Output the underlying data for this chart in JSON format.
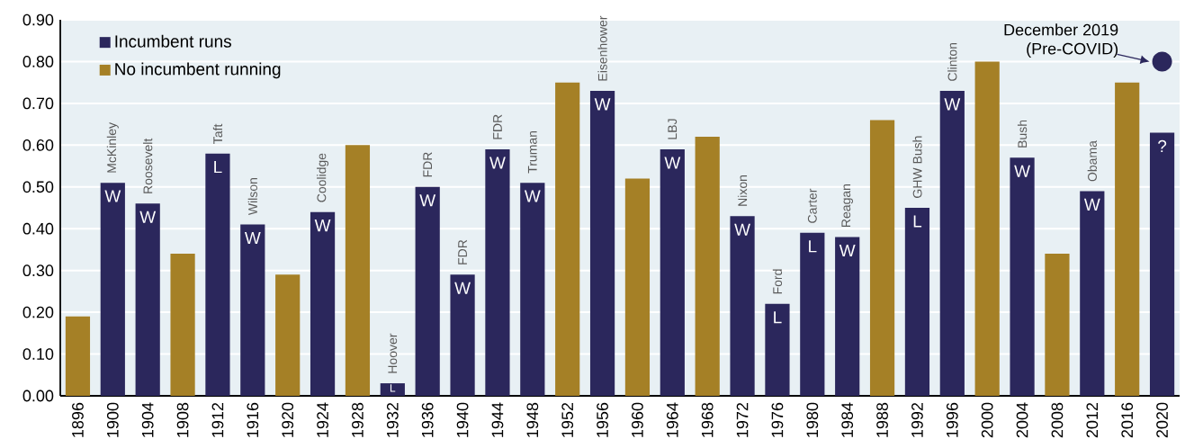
{
  "chart_data": {
    "type": "bar",
    "categories": [
      "1896",
      "1900",
      "1904",
      "1908",
      "1912",
      "1916",
      "1920",
      "1924",
      "1928",
      "1932",
      "1936",
      "1940",
      "1944",
      "1948",
      "1952",
      "1956",
      "1960",
      "1964",
      "1968",
      "1972",
      "1976",
      "1980",
      "1984",
      "1988",
      "1992",
      "1996",
      "2000",
      "2004",
      "2008",
      "2012",
      "2016",
      "2020"
    ],
    "series": [
      {
        "name": "Incumbent runs",
        "color": "#2b275c",
        "values": [
          null,
          0.51,
          0.46,
          null,
          0.58,
          0.41,
          null,
          0.44,
          null,
          0.03,
          0.5,
          0.29,
          0.59,
          0.51,
          null,
          0.73,
          null,
          0.59,
          null,
          0.43,
          0.22,
          0.39,
          0.38,
          null,
          0.45,
          0.73,
          null,
          0.57,
          null,
          0.49,
          null,
          0.63
        ],
        "value_labels": [
          null,
          "W",
          "W",
          null,
          "L",
          "W",
          null,
          "W",
          null,
          "L",
          "W",
          "W",
          "W",
          "W",
          null,
          "W",
          null,
          "W",
          null,
          "W",
          "L",
          "L",
          "W",
          null,
          "L",
          "W",
          null,
          "W",
          null,
          "W",
          null,
          "?"
        ]
      },
      {
        "name": "No incumbent running",
        "color": "#a58026",
        "values": [
          0.19,
          null,
          null,
          0.34,
          null,
          null,
          0.29,
          null,
          0.6,
          null,
          null,
          null,
          null,
          null,
          0.75,
          null,
          0.52,
          null,
          0.62,
          null,
          null,
          null,
          null,
          0.66,
          null,
          null,
          0.8,
          null,
          0.34,
          null,
          0.75,
          null
        ]
      },
      {
        "type": "scatter",
        "marker": "circle",
        "color": "#2b275c",
        "values": [
          null,
          null,
          null,
          null,
          null,
          null,
          null,
          null,
          null,
          null,
          null,
          null,
          null,
          null,
          null,
          null,
          null,
          null,
          null,
          null,
          null,
          null,
          null,
          null,
          null,
          null,
          null,
          null,
          null,
          null,
          null,
          0.8
        ]
      }
    ],
    "ylim": [
      0,
      0.9
    ],
    "yticks": [
      {
        "value": 0,
        "label": "0.00"
      },
      {
        "value": 0.1,
        "label": "0.10"
      },
      {
        "value": 0.2,
        "label": "0.20"
      },
      {
        "value": 0.3,
        "label": "0.30"
      },
      {
        "value": 0.4,
        "label": "0.40"
      },
      {
        "value": 0.5,
        "label": "0.50"
      },
      {
        "value": 0.6,
        "label": "0.60"
      },
      {
        "value": 0.7,
        "label": "0.70"
      },
      {
        "value": 0.8,
        "label": "0.80"
      },
      {
        "value": 0.9,
        "label": "0.90"
      }
    ],
    "grid": "y",
    "legend": "top left",
    "annotations": [
      {
        "text": "McKinley",
        "x": "1900",
        "y": 0.51
      },
      {
        "text": "Roosevelt",
        "x": "1904",
        "y": 0.46
      },
      {
        "text": "Taft",
        "x": "1912",
        "y": 0.58
      },
      {
        "text": "Wilson",
        "x": "1916",
        "y": 0.41
      },
      {
        "text": "Coolidge",
        "x": "1924",
        "y": 0.44
      },
      {
        "text": "Hoover",
        "x": "1932",
        "y": 0.03
      },
      {
        "text": "FDR",
        "x": "1936",
        "y": 0.5
      },
      {
        "text": "FDR",
        "x": "1940",
        "y": 0.29
      },
      {
        "text": "FDR",
        "x": "1944",
        "y": 0.59
      },
      {
        "text": "Truman",
        "x": "1948",
        "y": 0.51
      },
      {
        "text": "Eisenhower",
        "x": "1956",
        "y": 0.73
      },
      {
        "text": "LBJ",
        "x": "1964",
        "y": 0.59
      },
      {
        "text": "Nixon",
        "x": "1972",
        "y": 0.43
      },
      {
        "text": "Ford",
        "x": "1976",
        "y": 0.22
      },
      {
        "text": "Carter",
        "x": "1980",
        "y": 0.39
      },
      {
        "text": "Reagan",
        "x": "1984",
        "y": 0.38
      },
      {
        "text": "GHW Bush",
        "x": "1992",
        "y": 0.45
      },
      {
        "text": "Clinton",
        "x": "1996",
        "y": 0.73
      },
      {
        "text": "Bush",
        "x": "2004",
        "y": 0.57
      },
      {
        "text": "Obama",
        "x": "2012",
        "y": 0.49
      },
      "December 2019",
      "(Pre-COVID)"
    ]
  }
}
